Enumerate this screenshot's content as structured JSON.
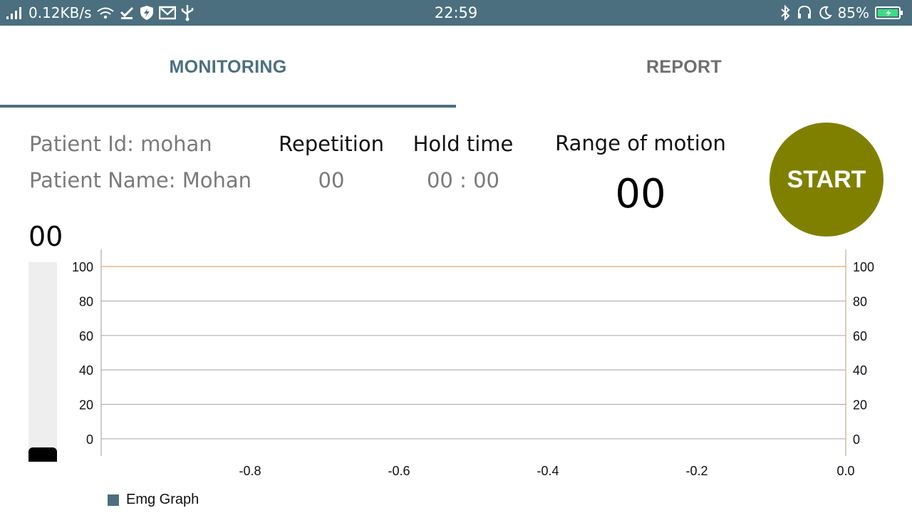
{
  "status_bar": {
    "network_speed": "0.12KB/s",
    "time": "22:59",
    "battery": "85%",
    "icons_left": [
      "signal-icon",
      "wifi-icon",
      "check-icon",
      "shield-icon",
      "mail-icon",
      "usb-icon"
    ],
    "icons_right": [
      "bluetooth-icon",
      "headset-icon",
      "moon-icon",
      "battery-icon"
    ]
  },
  "tabs": [
    {
      "label": "MONITORING",
      "active": true
    },
    {
      "label": "REPORT",
      "active": false
    }
  ],
  "patient": {
    "id_text": "Patient Id: mohan",
    "name_text": "Patient Name: Mohan"
  },
  "metrics": {
    "repetition": {
      "label": "Repetition",
      "value": "00"
    },
    "hold_time": {
      "label": "Hold time",
      "value": "00 : 00"
    },
    "range_of_motion": {
      "label": "Range of motion",
      "value": "00"
    }
  },
  "start_button": {
    "label": "START",
    "color": "#808000"
  },
  "level": {
    "value": "00",
    "fraction": 0.07
  },
  "colors": {
    "accent": "#4b6f7e",
    "limit_line": "#e8b77a"
  },
  "chart_data": {
    "type": "line",
    "series": [
      {
        "name": "Emg Graph",
        "x": [],
        "values": [],
        "color": "#4b6f7e"
      }
    ],
    "x_ticks": [
      "-0.8",
      "-0.6",
      "-0.4",
      "-0.2",
      "0.0"
    ],
    "y_ticks_left": [
      "100",
      "80",
      "60",
      "40",
      "20",
      "0"
    ],
    "y_ticks_right": [
      "100",
      "80",
      "60",
      "40",
      "20",
      "0"
    ],
    "xlim": [
      -1.0,
      0.0
    ],
    "ylim": [
      -10,
      110
    ],
    "limit_line": 100,
    "grid": true,
    "legend_position": "bottom-left"
  }
}
